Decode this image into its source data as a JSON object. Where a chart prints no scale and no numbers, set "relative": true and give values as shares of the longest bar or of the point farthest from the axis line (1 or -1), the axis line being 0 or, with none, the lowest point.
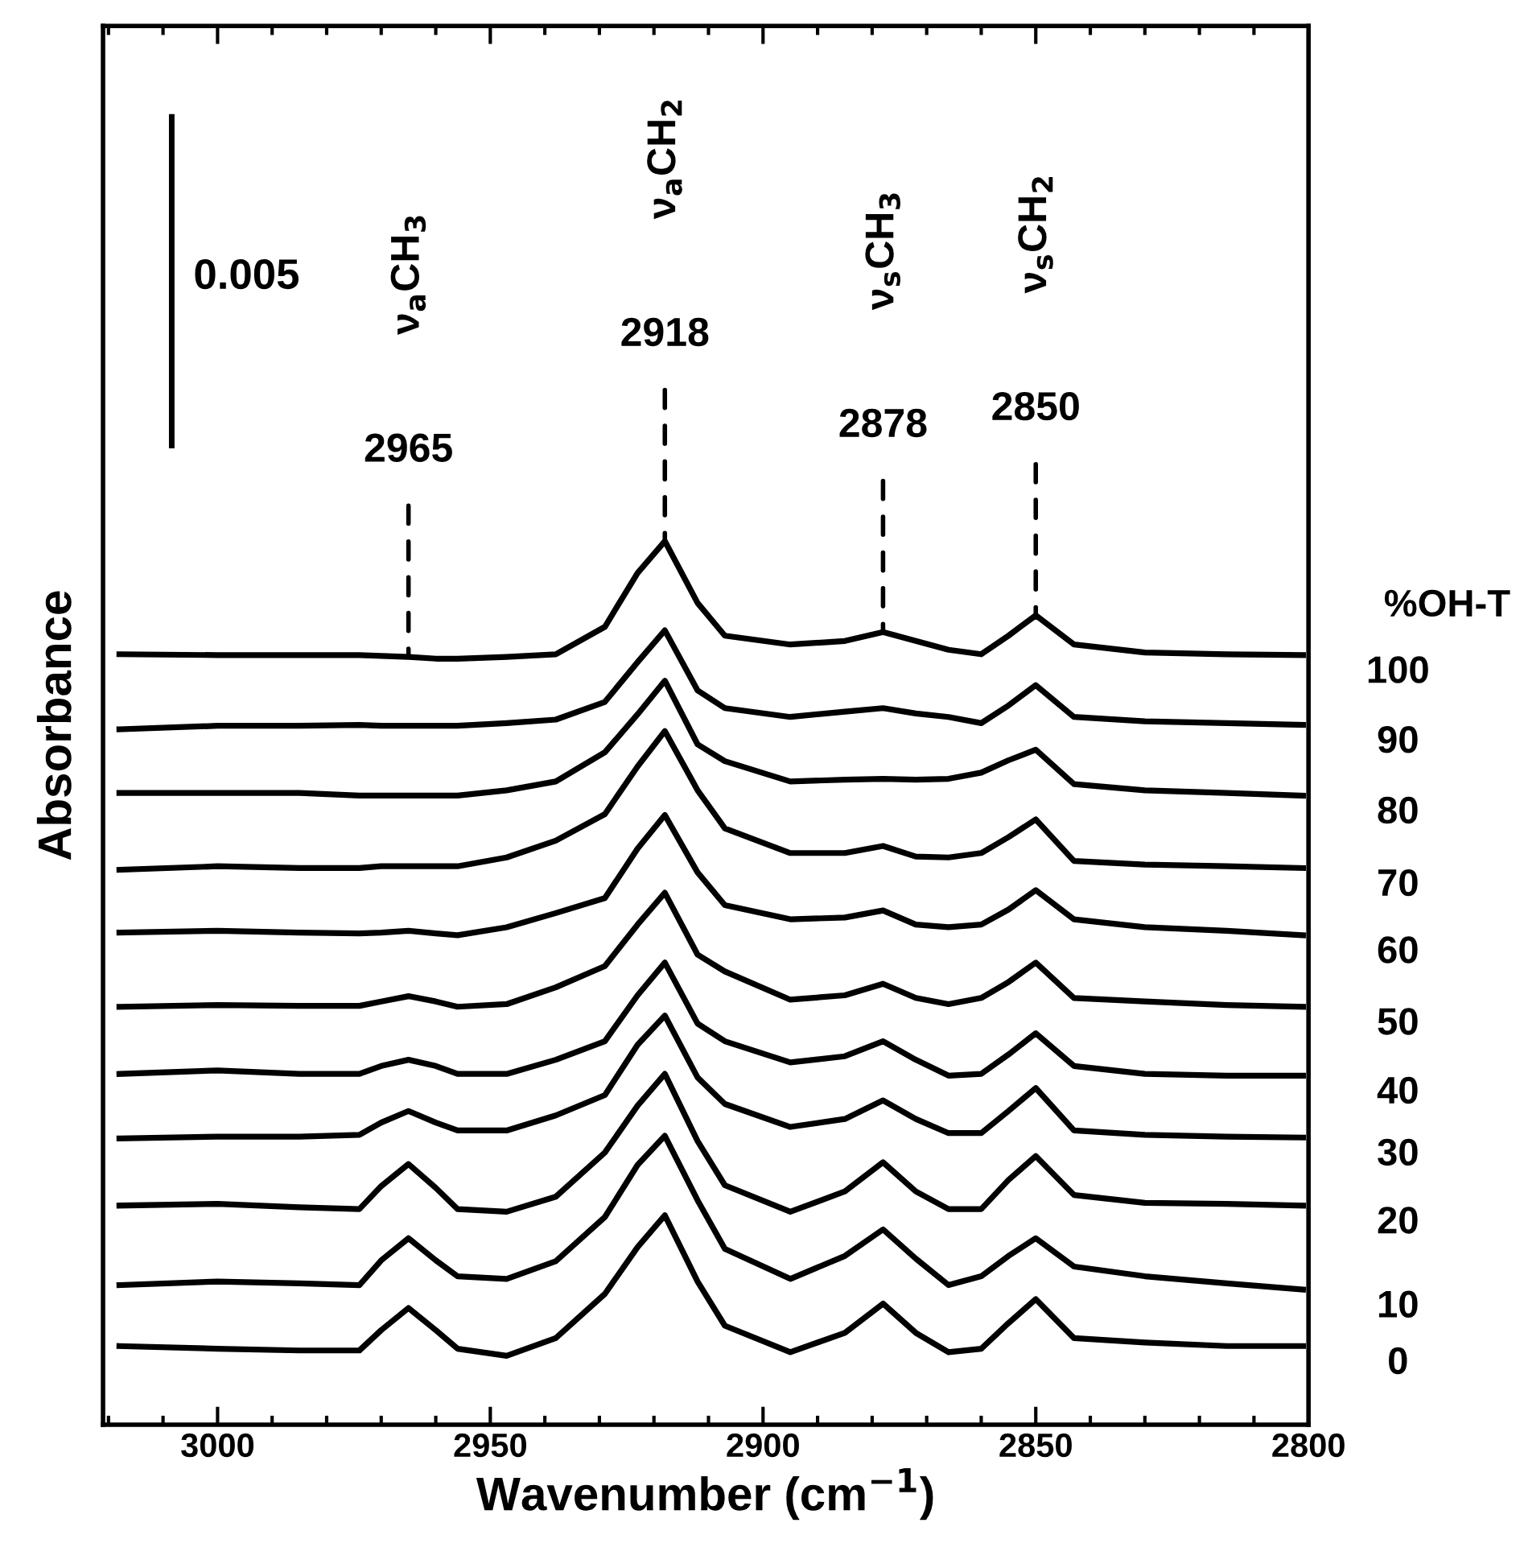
{
  "chart_data": {
    "type": "line",
    "relative": true,
    "xlabel": "Wavenumber (cm$^{−1}$)",
    "ylabel": "Absorbance",
    "legend_title": "%OH-T",
    "xlim": [
      3021,
      2800
    ],
    "xticks": [
      3000,
      2950,
      2900,
      2850,
      2800
    ],
    "grid": false,
    "legend": false,
    "marker": "none",
    "line_style": "solid",
    "x": [
      3018,
      3000,
      2985,
      2974,
      2970,
      2965,
      2960,
      2956,
      2947,
      2938,
      2929,
      2923,
      2918,
      2912,
      2907,
      2895,
      2885,
      2878,
      2872,
      2866,
      2860,
      2855,
      2850,
      2843,
      2830,
      2815,
      2801
    ],
    "series": [
      {
        "name": "100",
        "color": "#000000",
        "values": [
          0.872,
          0.871,
          0.871,
          0.871,
          0.87,
          0.869,
          0.867,
          0.867,
          0.869,
          0.872,
          0.903,
          0.964,
          1,
          0.93,
          0.893,
          0.883,
          0.887,
          0.897,
          0.887,
          0.877,
          0.872,
          0.893,
          0.916,
          0.883,
          0.874,
          0.872,
          0.871
        ]
      },
      {
        "name": "90",
        "color": "#000000",
        "values": [
          0.787,
          0.791,
          0.791,
          0.792,
          0.791,
          0.791,
          0.791,
          0.791,
          0.794,
          0.798,
          0.818,
          0.863,
          0.899,
          0.831,
          0.811,
          0.801,
          0.807,
          0.811,
          0.805,
          0.801,
          0.794,
          0.814,
          0.837,
          0.801,
          0.796,
          0.794,
          0.792
        ]
      },
      {
        "name": "80",
        "color": "#000000",
        "values": [
          0.715,
          0.715,
          0.715,
          0.712,
          0.712,
          0.712,
          0.712,
          0.712,
          0.718,
          0.728,
          0.761,
          0.804,
          0.842,
          0.77,
          0.751,
          0.728,
          0.73,
          0.731,
          0.73,
          0.731,
          0.738,
          0.752,
          0.764,
          0.725,
          0.718,
          0.715,
          0.712
        ]
      },
      {
        "name": "70",
        "color": "#000000",
        "values": [
          0.628,
          0.632,
          0.63,
          0.63,
          0.632,
          0.632,
          0.632,
          0.632,
          0.642,
          0.661,
          0.691,
          0.745,
          0.785,
          0.718,
          0.675,
          0.647,
          0.647,
          0.655,
          0.643,
          0.642,
          0.647,
          0.665,
          0.685,
          0.638,
          0.634,
          0.632,
          0.63
        ]
      },
      {
        "name": "60",
        "color": "#000000",
        "values": [
          0.557,
          0.559,
          0.557,
          0.556,
          0.557,
          0.559,
          0.556,
          0.554,
          0.563,
          0.579,
          0.596,
          0.652,
          0.69,
          0.625,
          0.588,
          0.572,
          0.574,
          0.582,
          0.566,
          0.563,
          0.566,
          0.583,
          0.605,
          0.572,
          0.563,
          0.559,
          0.554
        ]
      },
      {
        "name": "50",
        "color": "#000000",
        "values": [
          0.473,
          0.475,
          0.474,
          0.474,
          0.479,
          0.485,
          0.479,
          0.473,
          0.476,
          0.495,
          0.519,
          0.566,
          0.602,
          0.532,
          0.513,
          0.481,
          0.486,
          0.499,
          0.483,
          0.476,
          0.483,
          0.501,
          0.523,
          0.483,
          0.479,
          0.475,
          0.473
        ]
      },
      {
        "name": "40",
        "color": "#000000",
        "values": [
          0.397,
          0.401,
          0.397,
          0.397,
          0.406,
          0.413,
          0.406,
          0.397,
          0.397,
          0.413,
          0.434,
          0.486,
          0.523,
          0.454,
          0.434,
          0.41,
          0.417,
          0.434,
          0.413,
          0.395,
          0.397,
          0.419,
          0.443,
          0.406,
          0.397,
          0.395,
          0.395
        ]
      },
      {
        "name": "30",
        "color": "#000000",
        "values": [
          0.324,
          0.326,
          0.326,
          0.328,
          0.342,
          0.355,
          0.342,
          0.333,
          0.333,
          0.35,
          0.373,
          0.43,
          0.463,
          0.393,
          0.363,
          0.337,
          0.346,
          0.367,
          0.346,
          0.33,
          0.33,
          0.355,
          0.381,
          0.333,
          0.328,
          0.326,
          0.325
        ]
      },
      {
        "name": "20",
        "color": "#000000",
        "values": [
          0.248,
          0.25,
          0.246,
          0.244,
          0.27,
          0.295,
          0.268,
          0.244,
          0.241,
          0.258,
          0.308,
          0.361,
          0.397,
          0.321,
          0.271,
          0.241,
          0.264,
          0.297,
          0.264,
          0.244,
          0.244,
          0.277,
          0.304,
          0.26,
          0.251,
          0.25,
          0.248
        ]
      },
      {
        "name": "10",
        "color": "#000000",
        "values": [
          0.158,
          0.162,
          0.16,
          0.158,
          0.186,
          0.211,
          0.186,
          0.168,
          0.165,
          0.185,
          0.235,
          0.294,
          0.327,
          0.254,
          0.199,
          0.165,
          0.191,
          0.221,
          0.188,
          0.158,
          0.168,
          0.191,
          0.211,
          0.179,
          0.168,
          0.16,
          0.153
        ]
      },
      {
        "name": "0",
        "color": "#000000",
        "values": [
          0.089,
          0.086,
          0.084,
          0.084,
          0.107,
          0.132,
          0.107,
          0.086,
          0.078,
          0.098,
          0.148,
          0.201,
          0.237,
          0.162,
          0.112,
          0.082,
          0.104,
          0.137,
          0.104,
          0.082,
          0.086,
          0.115,
          0.142,
          0.098,
          0.093,
          0.089,
          0.089
        ]
      }
    ],
    "annotations": [
      {
        "text": "2965",
        "x": 2965,
        "y": 0.869
      },
      {
        "text": "2918",
        "x": 2918,
        "y": 1
      },
      {
        "text": "2878",
        "x": 2878,
        "y": 0.897
      },
      {
        "text": "2850",
        "x": 2850,
        "y": 0.916
      },
      "ν$_{a}$CH$_{3}$",
      "ν$_{a}$CH$_{2}$",
      "ν$_{s}$CH$_{3}$",
      "ν$_{s}$CH$_{2}$",
      "0.005"
    ]
  }
}
